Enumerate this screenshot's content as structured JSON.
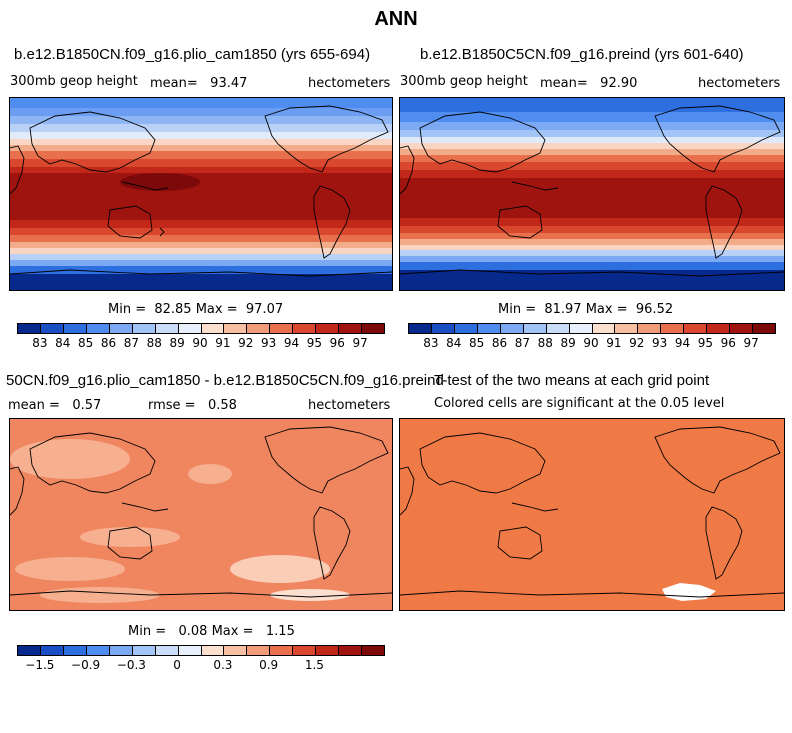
{
  "figure": {
    "title": "ANN"
  },
  "panels": [
    {
      "id": "case",
      "title": "b.e12.B1850CN.f09_g16.plio_cam1850 (yrs 655-694)",
      "variable": "300mb geop height",
      "mean_label": "mean=",
      "mean_value": "93.47",
      "units": "hectometers",
      "min_label": "Min =",
      "min_value": "82.85",
      "max_label": "Max =",
      "max_value": "97.07"
    },
    {
      "id": "control",
      "title": "b.e12.B1850C5CN.f09_g16.preind (yrs 601-640)",
      "variable": "300mb geop height",
      "mean_label": "mean=",
      "mean_value": "92.90",
      "units": "hectometers",
      "min_label": "Min =",
      "min_value": "81.97",
      "max_label": "Max =",
      "max_value": "96.52"
    },
    {
      "id": "difference",
      "title": "50CN.f09_g16.plio_cam1850 - b.e12.B1850C5CN.f09_g16.preind",
      "mean_label": "mean =",
      "mean_value": "0.57",
      "rmse_label": "rmse =",
      "rmse_value": "0.58",
      "units": "hectometers",
      "min_label": "Min =",
      "min_value": "0.08",
      "max_label": "Max =",
      "max_value": "1.15"
    },
    {
      "id": "ttest",
      "title": "T-test of the two means at each grid point",
      "subtitle": "Colored cells are significant at the 0.05 level"
    }
  ],
  "colorbars": {
    "abs": {
      "labels": [
        "83",
        "84",
        "85",
        "86",
        "87",
        "88",
        "89",
        "90",
        "91",
        "92",
        "93",
        "94",
        "95",
        "96",
        "97"
      ],
      "colors": [
        "#08298c",
        "#1a4ec4",
        "#2e6fe0",
        "#4f8df0",
        "#7ba9f3",
        "#a3c4f6",
        "#c9dcf8",
        "#e8f0fb",
        "#fbe0d0",
        "#f7c0a3",
        "#f29b78",
        "#e8704d",
        "#d9482e",
        "#c2281a",
        "#a01410",
        "#7d0a0a"
      ]
    },
    "diff": {
      "labels": [
        "−1.5",
        "−0.9",
        "−0.3",
        "0",
        "0.3",
        "0.9",
        "1.5"
      ],
      "colors": [
        "#08298c",
        "#1a4ec4",
        "#2e6fe0",
        "#4f8df0",
        "#7ba9f3",
        "#a3c4f6",
        "#c9dcf8",
        "#e8f0fb",
        "#fbe0d0",
        "#f7c0a3",
        "#f29b78",
        "#e8704d",
        "#d9482e",
        "#c2281a",
        "#a01410",
        "#7d0a0a"
      ]
    }
  }
}
